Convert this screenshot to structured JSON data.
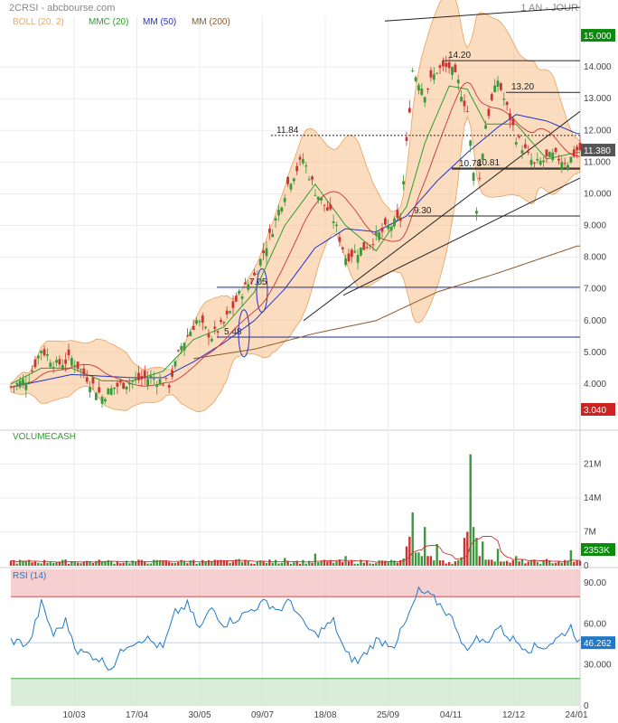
{
  "header": {
    "symbol_source": "2CRSI - abcbourse.com",
    "period": "1 AN - JOUR"
  },
  "legend": [
    {
      "label": "BOLL (20, 2)",
      "color": "#f0a860"
    },
    {
      "label": "MMC (20)",
      "color": "#2e9e2e"
    },
    {
      "label": "MM (50)",
      "color": "#2233cc"
    },
    {
      "label": "MM (200)",
      "color": "#8a5a2e"
    }
  ],
  "colors": {
    "up": "#3a9a3a",
    "down": "#cc3333",
    "band": "#f7c08a",
    "rsi": "#1f78c8",
    "overbought": "#f4c4c4",
    "oversold": "#cfe8cf"
  },
  "chart_data": [
    {
      "type": "candlestick",
      "panel": "price",
      "ylim": [
        3.0,
        15.6
      ],
      "y_ticks": [
        "4.000",
        "5.000",
        "6.000",
        "7.000",
        "8.000",
        "9.000",
        "10.000",
        "11.000",
        "12.000",
        "13.000",
        "14.000"
      ],
      "x_ticks": [
        "10/03",
        "17/04",
        "30/05",
        "09/07",
        "18/08",
        "25/09",
        "04/11",
        "12/12",
        "24/01"
      ],
      "grid": true,
      "badges": {
        "high": "15.000",
        "last": "11.380",
        "low": "3.040"
      },
      "price_path": [
        [
          0,
          3.9
        ],
        [
          6,
          4.2
        ],
        [
          10,
          5.1
        ],
        [
          15,
          4.6
        ],
        [
          20,
          4.8
        ],
        [
          25,
          4.2
        ],
        [
          30,
          3.6
        ],
        [
          34,
          3.9
        ],
        [
          40,
          4.1
        ],
        [
          46,
          4.2
        ],
        [
          52,
          4.0
        ],
        [
          56,
          5.2
        ],
        [
          61,
          6.0
        ],
        [
          66,
          5.5
        ],
        [
          70,
          5.9
        ],
        [
          75,
          6.8
        ],
        [
          80,
          7.4
        ],
        [
          86,
          8.9
        ],
        [
          91,
          10.3
        ],
        [
          96,
          11.1
        ],
        [
          100,
          10.1
        ],
        [
          106,
          9.2
        ],
        [
          110,
          8.0
        ],
        [
          116,
          8.3
        ],
        [
          122,
          8.8
        ],
        [
          128,
          9.2
        ],
        [
          132,
          13.9
        ],
        [
          136,
          13.2
        ],
        [
          140,
          13.9
        ],
        [
          144,
          14.0
        ],
        [
          147,
          13.5
        ],
        [
          150,
          12.6
        ],
        [
          153,
          9.6
        ],
        [
          156,
          12.2
        ],
        [
          160,
          13.6
        ],
        [
          166,
          11.8
        ],
        [
          172,
          10.9
        ],
        [
          178,
          11.2
        ],
        [
          183,
          11.0
        ],
        [
          186,
          11.38
        ]
      ],
      "series": [
        {
          "name": "BOLL (20, 2)",
          "role": "bollinger"
        },
        {
          "name": "MMC (20)",
          "values_path": [
            [
              0,
              4.0
            ],
            [
              10,
              4.5
            ],
            [
              20,
              4.5
            ],
            [
              30,
              4.1
            ],
            [
              40,
              4.1
            ],
            [
              50,
              4.4
            ],
            [
              60,
              5.4
            ],
            [
              70,
              5.8
            ],
            [
              80,
              6.9
            ],
            [
              90,
              9.0
            ],
            [
              100,
              10.3
            ],
            [
              110,
              9.0
            ],
            [
              120,
              8.2
            ],
            [
              130,
              9.6
            ],
            [
              136,
              11.6
            ],
            [
              144,
              13.4
            ],
            [
              150,
              13.3
            ],
            [
              156,
              12.2
            ],
            [
              166,
              12.2
            ],
            [
              176,
              11.1
            ],
            [
              186,
              11.3
            ]
          ]
        },
        {
          "name": "MM (50)",
          "values_path": [
            [
              0,
              3.9
            ],
            [
              20,
              4.3
            ],
            [
              40,
              4.2
            ],
            [
              50,
              4.2
            ],
            [
              60,
              4.7
            ],
            [
              70,
              5.3
            ],
            [
              80,
              6.0
            ],
            [
              90,
              7.0
            ],
            [
              100,
              8.3
            ],
            [
              110,
              8.9
            ],
            [
              120,
              8.8
            ],
            [
              130,
              9.3
            ],
            [
              140,
              10.4
            ],
            [
              150,
              11.3
            ],
            [
              160,
              12.1
            ],
            [
              166,
              12.5
            ],
            [
              176,
              12.3
            ],
            [
              186,
              11.9
            ]
          ]
        },
        {
          "name": "MM (200)",
          "values_path": [
            [
              60,
              4.8
            ],
            [
              80,
              5.1
            ],
            [
              100,
              5.6
            ],
            [
              120,
              6.0
            ],
            [
              140,
              6.9
            ],
            [
              160,
              7.5
            ],
            [
              186,
              8.35
            ]
          ]
        }
      ],
      "annotations": [
        {
          "text": "14.20",
          "value": 14.2,
          "style": "resistance"
        },
        {
          "text": "13.20",
          "value": 13.2,
          "style": "resistance"
        },
        {
          "text": "11.84",
          "value": 11.84,
          "style": "dotted"
        },
        {
          "text": "10.78",
          "value": 10.78,
          "style": "support"
        },
        {
          "text": "10.81",
          "value": 10.81,
          "style": "support"
        },
        {
          "text": "9.30",
          "value": 9.3,
          "style": "support"
        },
        {
          "text": "7.05",
          "value": 7.05,
          "style": "level-blue"
        },
        {
          "text": "5.48",
          "value": 5.48,
          "style": "level-blue"
        }
      ]
    },
    {
      "type": "bar",
      "panel": "volume",
      "title": "VOLUMECASH",
      "y_ticks": [
        "21M",
        "14M",
        "7M",
        "0"
      ],
      "ylim": [
        0,
        25
      ],
      "last_value": "2353K",
      "spikes": [
        [
          30,
          0.9
        ],
        [
          50,
          1.1
        ],
        [
          60,
          1.2
        ],
        [
          75,
          1.4
        ],
        [
          90,
          1.6
        ],
        [
          100,
          2.5
        ],
        [
          110,
          2.0
        ],
        [
          130,
          4.0
        ],
        [
          131,
          6.0
        ],
        [
          132,
          11.0
        ],
        [
          136,
          8.0
        ],
        [
          140,
          4.5
        ],
        [
          150,
          7.0
        ],
        [
          151,
          23.0
        ],
        [
          152,
          8.0
        ],
        [
          155,
          5.0
        ],
        [
          160,
          3.5
        ],
        [
          166,
          2.0
        ],
        [
          176,
          1.4
        ],
        [
          184,
          3.2
        ]
      ]
    },
    {
      "type": "line",
      "panel": "rsi",
      "title": "RSI (14)",
      "ylim": [
        0,
        100
      ],
      "y_ticks": [
        "90.00",
        "60.00",
        "30.000",
        "0"
      ],
      "bands": {
        "overbought": 80,
        "oversold": 20
      },
      "last_value": "46.262",
      "values_path": [
        [
          0,
          48
        ],
        [
          6,
          45
        ],
        [
          10,
          75
        ],
        [
          14,
          52
        ],
        [
          18,
          62
        ],
        [
          22,
          40
        ],
        [
          28,
          36
        ],
        [
          33,
          28
        ],
        [
          38,
          45
        ],
        [
          44,
          50
        ],
        [
          50,
          42
        ],
        [
          54,
          68
        ],
        [
          58,
          74
        ],
        [
          62,
          56
        ],
        [
          66,
          72
        ],
        [
          70,
          60
        ],
        [
          76,
          66
        ],
        [
          80,
          72
        ],
        [
          84,
          76
        ],
        [
          88,
          70
        ],
        [
          92,
          77
        ],
        [
          96,
          60
        ],
        [
          100,
          52
        ],
        [
          106,
          62
        ],
        [
          110,
          38
        ],
        [
          114,
          32
        ],
        [
          120,
          48
        ],
        [
          126,
          45
        ],
        [
          130,
          62
        ],
        [
          134,
          84
        ],
        [
          138,
          80
        ],
        [
          142,
          72
        ],
        [
          146,
          60
        ],
        [
          150,
          38
        ],
        [
          152,
          50
        ],
        [
          156,
          46
        ],
        [
          160,
          58
        ],
        [
          164,
          50
        ],
        [
          170,
          42
        ],
        [
          176,
          44
        ],
        [
          180,
          50
        ],
        [
          184,
          58
        ],
        [
          187,
          46
        ]
      ]
    }
  ]
}
